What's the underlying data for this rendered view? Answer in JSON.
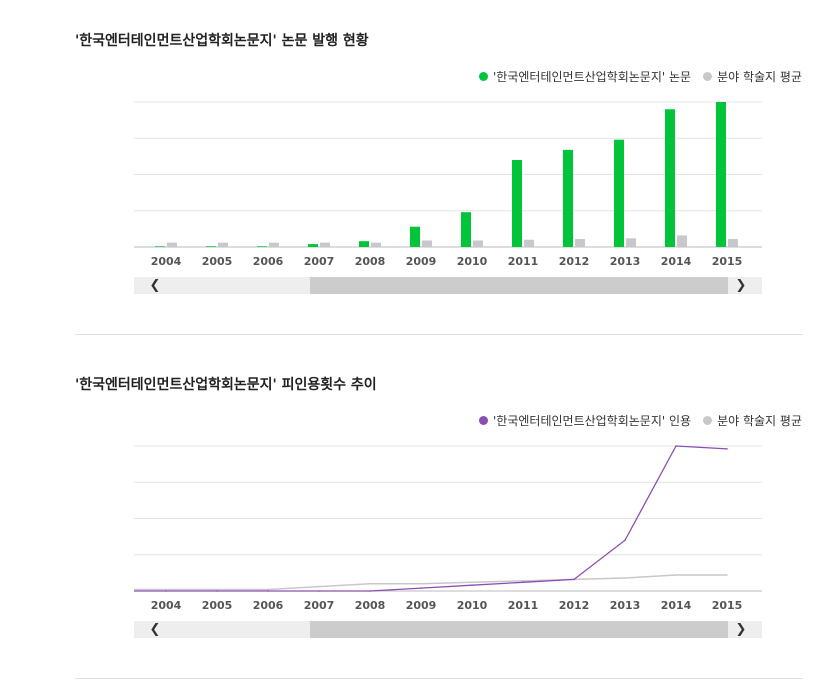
{
  "colors": {
    "paper": "#00c43a",
    "citation": "#8a4fb0",
    "avg": "#c8c8cc",
    "grid": "#e4e4e4",
    "axis": "#bbbbbb"
  },
  "charts": {
    "publication": {
      "title": "'한국엔터테인먼트산업학회논문지' 논문 발행 현황",
      "legend_main": "'한국엔터테인먼트산업학회논문지' 논문",
      "legend_avg": "분야 학술지 평균"
    },
    "citation": {
      "title": "'한국엔터테인먼트산업학회논문지' 피인용횟수 추이",
      "legend_main": "'한국엔터테인먼트산업학회논문지' 인용",
      "legend_avg": "분야 학술지 평균"
    }
  },
  "scroll": {
    "left_icon": "chevron-left-icon",
    "right_icon": "chevron-right-icon",
    "left_glyph": "❮",
    "right_glyph": "❯"
  },
  "chart_data": [
    {
      "type": "bar",
      "title": "'한국엔터테인먼트산업학회논문지' 논문 발행 현황",
      "categories": [
        "2004",
        "2005",
        "2006",
        "2007",
        "2008",
        "2009",
        "2010",
        "2011",
        "2012",
        "2013",
        "2014",
        "2015"
      ],
      "series": [
        {
          "name": "'한국엔터테인먼트산업학회논문지' 논문",
          "values": [
            0.5,
            0.5,
            0.5,
            2,
            4,
            14,
            24,
            60,
            67,
            74,
            95,
            100
          ]
        },
        {
          "name": "분야 학술지 평균",
          "values": [
            3,
            3,
            3,
            3,
            3,
            4.5,
            4.5,
            5,
            5.5,
            6,
            8,
            5.5
          ]
        }
      ],
      "ylim": [
        0,
        100
      ],
      "grid": true,
      "legend": "top-right"
    },
    {
      "type": "line",
      "title": "'한국엔터테인먼트산업학회논문지' 피인용횟수 추이",
      "categories": [
        "2004",
        "2005",
        "2006",
        "2007",
        "2008",
        "2009",
        "2010",
        "2011",
        "2012",
        "2013",
        "2014",
        "2015"
      ],
      "series": [
        {
          "name": "'한국엔터테인먼트산업학회논문지' 인용",
          "values": [
            0,
            0,
            0,
            0,
            0,
            2,
            4,
            6,
            8,
            35,
            100,
            98
          ]
        },
        {
          "name": "분야 학술지 평균",
          "values": [
            1,
            1,
            1,
            3,
            5,
            5,
            6,
            7,
            8,
            9,
            11,
            11
          ]
        }
      ],
      "ylim": [
        0,
        100
      ],
      "grid": true,
      "legend": "top-right"
    }
  ]
}
